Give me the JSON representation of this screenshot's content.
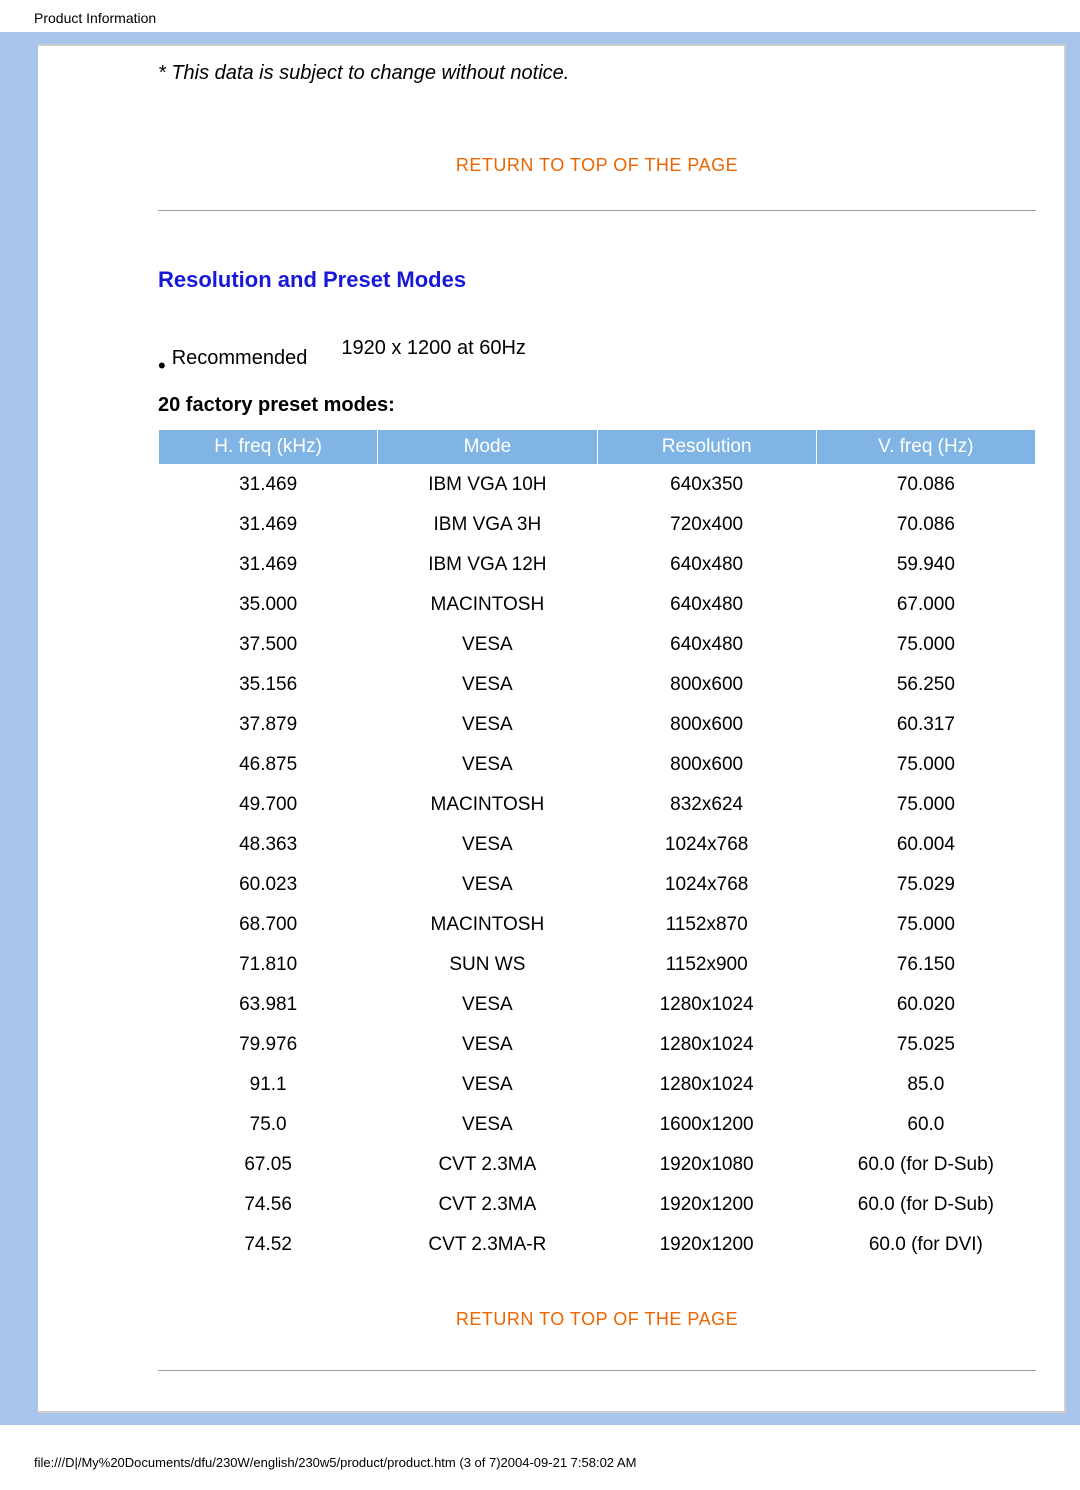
{
  "header_text": "Product Information",
  "notice_text": "* This data is subject to change without notice.",
  "return_to_top_label": "RETURN TO TOP OF THE PAGE",
  "section_title": "Resolution and Preset Modes",
  "recommended_label": "Recommended",
  "recommended_value": "1920 x 1200 at 60Hz",
  "preset_heading": "20 factory preset modes:",
  "table": {
    "header_bg": "#7fb4e4",
    "header_fg": "#ffffff",
    "columns": [
      "H. freq (kHz)",
      "Mode",
      "Resolution",
      "V. freq (Hz)"
    ],
    "rows": [
      [
        "31.469",
        "IBM VGA 10H",
        "640x350",
        "70.086"
      ],
      [
        "31.469",
        "IBM VGA 3H",
        "720x400",
        "70.086"
      ],
      [
        "31.469",
        "IBM VGA 12H",
        "640x480",
        "59.940"
      ],
      [
        "35.000",
        "MACINTOSH",
        "640x480",
        "67.000"
      ],
      [
        "37.500",
        "VESA",
        "640x480",
        "75.000"
      ],
      [
        "35.156",
        "VESA",
        "800x600",
        "56.250"
      ],
      [
        "37.879",
        "VESA",
        "800x600",
        "60.317"
      ],
      [
        "46.875",
        "VESA",
        "800x600",
        "75.000"
      ],
      [
        "49.700",
        "MACINTOSH",
        "832x624",
        "75.000"
      ],
      [
        "48.363",
        "VESA",
        "1024x768",
        "60.004"
      ],
      [
        "60.023",
        "VESA",
        "1024x768",
        "75.029"
      ],
      [
        "68.700",
        "MACINTOSH",
        "1152x870",
        "75.000"
      ],
      [
        "71.810",
        "SUN WS",
        "1152x900",
        "76.150"
      ],
      [
        "63.981",
        "VESA",
        "1280x1024",
        "60.020"
      ],
      [
        "79.976",
        "VESA",
        "1280x1024",
        "75.025"
      ],
      [
        "91.1",
        "VESA",
        "1280x1024",
        "85.0"
      ],
      [
        "75.0",
        "VESA",
        "1600x1200",
        "60.0"
      ],
      [
        "67.05",
        "CVT 2.3MA",
        "1920x1080",
        "60.0 (for D-Sub)"
      ],
      [
        "74.56",
        "CVT 2.3MA",
        "1920x1200",
        "60.0 (for D-Sub)"
      ],
      [
        "74.52",
        "CVT 2.3MA-R",
        "1920x1200",
        "60.0 (for DVI)"
      ]
    ]
  },
  "footer_path": "file:///D|/My%20Documents/dfu/230W/english/230w5/product/product.htm (3 of 7)2004-09-21 7:58:02 AM",
  "colors": {
    "outer_band": "#a8c4ea",
    "link_orange": "#ec6500",
    "title_blue": "#1818d8"
  }
}
